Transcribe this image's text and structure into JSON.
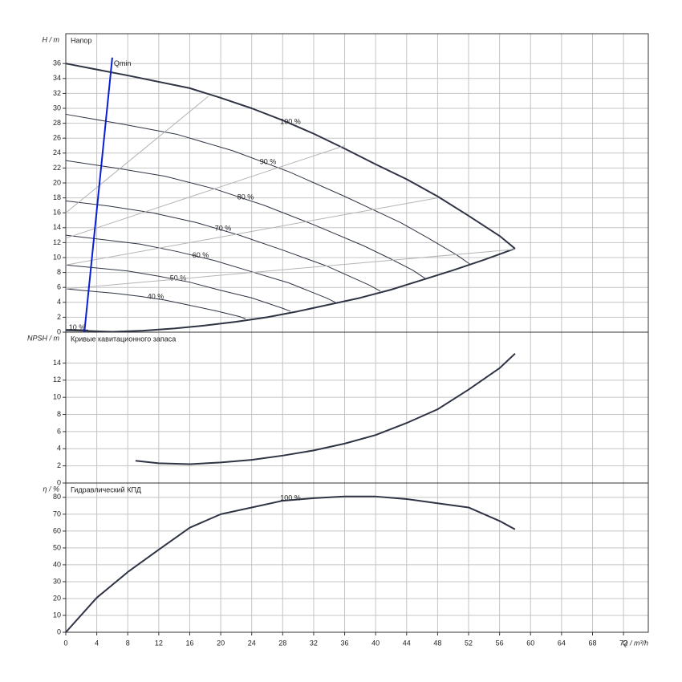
{
  "chart_data": [
    {
      "type": "line",
      "title": "Напор",
      "ylabel": "H / m",
      "xlim": [
        0,
        75.2
      ],
      "ylim": [
        0,
        40
      ],
      "yticks": [
        0,
        2,
        4,
        6,
        8,
        10,
        12,
        14,
        16,
        18,
        20,
        22,
        24,
        26,
        28,
        30,
        32,
        34,
        36
      ],
      "grid": true,
      "series": [
        {
          "name": "100 %",
          "color": "#2e3444",
          "linewidth": 2,
          "x": [
            0,
            8,
            16,
            20,
            24,
            28,
            32,
            36,
            40,
            44,
            48,
            52,
            56,
            58
          ],
          "values": [
            36,
            34.4,
            32.7,
            31.4,
            30,
            28.4,
            26.6,
            24.6,
            22.5,
            20.5,
            18.2,
            15.6,
            12.9,
            11.2
          ]
        },
        {
          "name": "90 %",
          "color": "#2e3444",
          "linewidth": 1,
          "x": [
            0,
            7.2,
            14.4,
            21.6,
            28.8,
            36,
            43.2,
            46.8,
            50.4,
            52.2
          ],
          "values": [
            29.2,
            27.9,
            26.5,
            24.3,
            21.5,
            18.2,
            14.7,
            12.6,
            10.4,
            9.1
          ]
        },
        {
          "name": "80 %",
          "color": "#2e3444",
          "linewidth": 1,
          "x": [
            0,
            6.4,
            12.8,
            19.2,
            25.6,
            32,
            38.4,
            41.6,
            44.8,
            46.4
          ],
          "values": [
            23,
            22,
            20.9,
            19.2,
            17,
            14.4,
            11.6,
            10,
            8.3,
            7.2
          ]
        },
        {
          "name": "70 %",
          "color": "#2e3444",
          "linewidth": 1,
          "x": [
            0,
            5.6,
            11.2,
            16.8,
            22.4,
            28,
            33.6,
            36.4,
            39.2,
            40.6
          ],
          "values": [
            17.6,
            16.9,
            16,
            14.7,
            13,
            11,
            8.9,
            7.6,
            6.3,
            5.5
          ]
        },
        {
          "name": "60 %",
          "color": "#2e3444",
          "linewidth": 1,
          "x": [
            0,
            4.8,
            9.6,
            14.4,
            19.2,
            24,
            28.8,
            31.2,
            33.6,
            34.8
          ],
          "values": [
            13,
            12.4,
            11.8,
            10.8,
            9.6,
            8.1,
            6.6,
            5.6,
            4.6,
            4
          ]
        },
        {
          "name": "50 %",
          "color": "#2e3444",
          "linewidth": 1,
          "x": [
            0,
            4,
            8,
            12,
            16,
            20,
            24,
            26,
            28,
            29
          ],
          "values": [
            9,
            8.6,
            8.2,
            7.5,
            6.7,
            5.6,
            4.6,
            3.9,
            3.2,
            2.8
          ]
        },
        {
          "name": "40 %",
          "color": "#2e3444",
          "linewidth": 1,
          "x": [
            0,
            3.2,
            6.4,
            9.6,
            12.8,
            16,
            19.2,
            20.8,
            22.4,
            23.2
          ],
          "values": [
            5.8,
            5.5,
            5.2,
            4.8,
            4.3,
            3.6,
            2.9,
            2.5,
            2.1,
            1.8
          ]
        },
        {
          "name": "10 %",
          "color": "#2e3444",
          "linewidth": 1,
          "x": [
            0,
            1.4,
            2.9
          ],
          "values": [
            0.36,
            0.34,
            0.28
          ]
        },
        {
          "color": "#2e3444",
          "linewidth": 2,
          "x": [
            0,
            2,
            6,
            10,
            14,
            18,
            22,
            26,
            30,
            34,
            38,
            42,
            46,
            50,
            54,
            58
          ],
          "values": [
            0.25,
            0.2,
            0.05,
            0.2,
            0.5,
            0.9,
            1.4,
            2,
            2.8,
            3.7,
            4.6,
            5.7,
            7,
            8.3,
            9.7,
            11.2
          ]
        },
        {
          "color": "#b4b4b4",
          "linewidth": 1,
          "x": [
            0,
            18.4
          ],
          "values": [
            16,
            31.6
          ]
        },
        {
          "color": "#b4b4b4",
          "linewidth": 1,
          "x": [
            0,
            36
          ],
          "values": [
            12.6,
            25
          ]
        },
        {
          "color": "#b4b4b4",
          "linewidth": 1,
          "x": [
            0,
            48
          ],
          "values": [
            9,
            18
          ]
        },
        {
          "color": "#b4b4b4",
          "linewidth": 1,
          "x": [
            0,
            58
          ],
          "values": [
            5.8,
            11.1
          ]
        },
        {
          "name": "Qmin",
          "color": "#0a1fd0",
          "linewidth": 2,
          "x": [
            2.4,
            6
          ],
          "values": [
            0,
            36.8
          ]
        }
      ]
    },
    {
      "type": "line",
      "title": "Кривые кавитационного запаса",
      "ylabel": "NPSH / m",
      "xlim": [
        0,
        75.2
      ],
      "ylim": [
        0,
        17.6
      ],
      "yticks": [
        0,
        2,
        4,
        6,
        8,
        10,
        12,
        14
      ],
      "grid": true,
      "series": [
        {
          "color": "#2e3444",
          "linewidth": 2,
          "x": [
            9,
            12,
            16,
            20,
            24,
            28,
            32,
            36,
            40,
            44,
            48,
            52,
            56,
            58
          ],
          "values": [
            2.6,
            2.3,
            2.2,
            2.4,
            2.7,
            3.2,
            3.8,
            4.6,
            5.6,
            7,
            8.6,
            10.9,
            13.4,
            15.1
          ]
        }
      ]
    },
    {
      "type": "line",
      "title": "Гидравлический КПД",
      "ylabel": "η / %",
      "xlabel": "Q / m³/h",
      "xlim": [
        0,
        75.2
      ],
      "ylim": [
        0,
        88.5
      ],
      "xticks": [
        0,
        4,
        8,
        12,
        16,
        20,
        24,
        28,
        32,
        36,
        40,
        44,
        48,
        52,
        56,
        60,
        64,
        68,
        72
      ],
      "yticks": [
        0,
        10,
        20,
        30,
        40,
        50,
        60,
        70,
        80
      ],
      "grid": true,
      "series": [
        {
          "name": "100 %",
          "color": "#2e3444",
          "linewidth": 2,
          "x": [
            0,
            4,
            8,
            12,
            16,
            20,
            24,
            28,
            32,
            36,
            40,
            44,
            48,
            52,
            56,
            58
          ],
          "values": [
            0,
            20.5,
            35.7,
            49,
            62,
            70,
            74,
            78,
            79.5,
            80.5,
            80.5,
            79,
            76.5,
            74,
            66,
            61
          ]
        }
      ]
    }
  ]
}
